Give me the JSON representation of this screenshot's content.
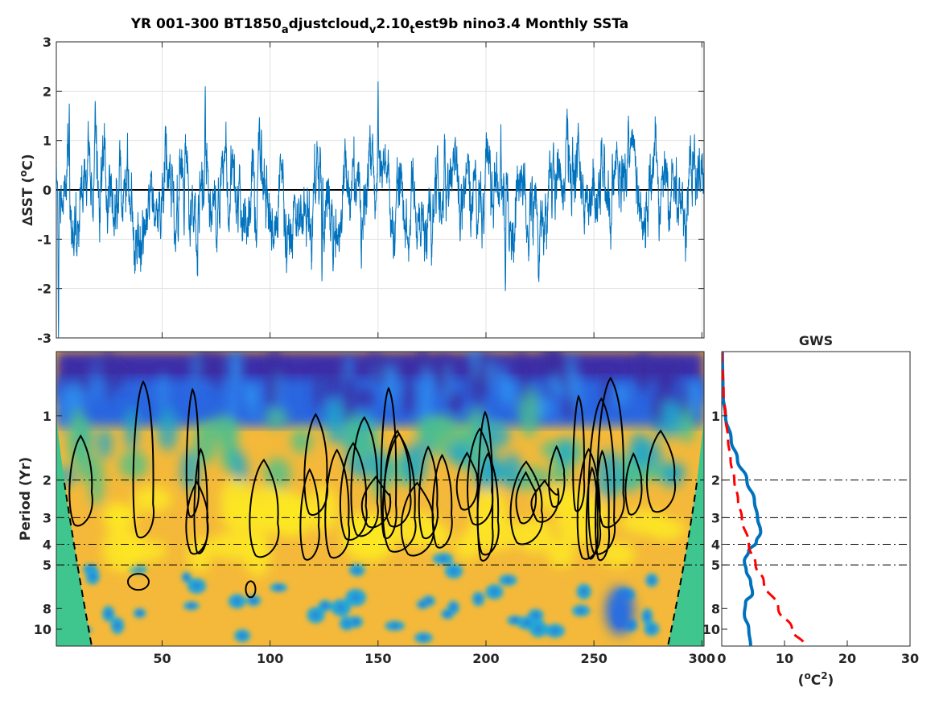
{
  "chart_data": [
    {
      "type": "line",
      "title_parts": [
        "YR 001-300 BT1850",
        "a",
        "djustcloud",
        "v",
        "2.10",
        "t",
        "est9b nino3.4 Monthly SSTa"
      ],
      "ylabel_parts": [
        "∆SST (",
        "o",
        "C)"
      ],
      "xlabel": "",
      "xlim": [
        1,
        301
      ],
      "ylim": [
        -3,
        3
      ],
      "yticks": [
        3,
        2,
        1,
        0,
        -1,
        -2,
        -3
      ],
      "xticks_grid": [
        50,
        100,
        150,
        200,
        250,
        300
      ],
      "grid": true,
      "series": [
        {
          "color": "#0072BD",
          "x_start": 1,
          "x_step": 0.0833,
          "count": 3600,
          "description_peaks": [
            [
              2.0,
              -3.0
            ],
            [
              7,
              1.75
            ],
            [
              19,
              1.8
            ],
            [
              70,
              2.1
            ],
            [
              150,
              2.2
            ],
            [
              209,
              -2.05
            ],
            [
              124,
              -1.85
            ]
          ]
        }
      ],
      "zero_line": 0
    },
    {
      "type": "heatmap",
      "ylabel": "Period (Yr)",
      "xlim": [
        1,
        301
      ],
      "xticks": [
        50,
        100,
        150,
        200,
        250,
        300
      ],
      "yscale": "log",
      "ylim": [
        0.5,
        12
      ],
      "yticks": [
        1,
        2,
        3,
        4,
        5,
        8,
        10
      ],
      "reference_periods": [
        2,
        3,
        4,
        5
      ],
      "colormap": "parula",
      "cone_of_influence": true
    },
    {
      "type": "line",
      "title": "GWS",
      "xlabel_parts": [
        "(",
        "o",
        "C",
        "2",
        ")"
      ],
      "xlim": [
        0,
        30
      ],
      "xticks": [
        0,
        10,
        20,
        30
      ],
      "yscale": "log",
      "ylim": [
        0.5,
        12
      ],
      "yticks": [
        1,
        2,
        3,
        4,
        5,
        8,
        10
      ],
      "reference_periods": [
        2,
        3,
        4,
        5
      ],
      "series": [
        {
          "style": "solid",
          "color": "#0072BD",
          "period": [
            0.5,
            0.8,
            1.0,
            1.3,
            1.6,
            2.0,
            2.5,
            3.0,
            3.5,
            3.9,
            4.3,
            4.8,
            5.3,
            6.0,
            6.8,
            7.5,
            8.5,
            10.0,
            12.0
          ],
          "power": [
            0.1,
            0.2,
            0.6,
            1.5,
            2.5,
            4.0,
            5.2,
            5.7,
            6.2,
            5.5,
            4.3,
            3.6,
            3.9,
            4.6,
            4.9,
            3.8,
            3.6,
            4.3,
            4.6
          ]
        },
        {
          "style": "dashed",
          "color": "#FF0000",
          "period": [
            0.5,
            0.8,
            1.0,
            1.3,
            1.6,
            2.0,
            2.5,
            3.0,
            4.0,
            5.0,
            6.0,
            8.0,
            10.0,
            12.0
          ],
          "power": [
            0.0,
            0.3,
            0.6,
            1.0,
            1.4,
            2.0,
            2.6,
            3.2,
            4.3,
            5.4,
            6.7,
            9.0,
            11.2,
            13.2
          ]
        }
      ]
    }
  ]
}
